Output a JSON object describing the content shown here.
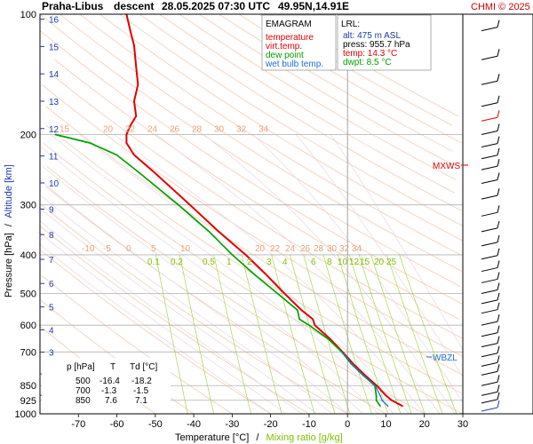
{
  "header": {
    "station": "Praha-Libus",
    "mode": "descent",
    "datetime": "28.05.2025 07:30 UTC",
    "location": "49.95N,14.91E",
    "copyright": "CHMI © 2025"
  },
  "legend": {
    "title": "EMAGRAM",
    "items": [
      {
        "label": "temperature",
        "color": "#e00000"
      },
      {
        "label": "virt.temp.",
        "color": "#e00000"
      },
      {
        "label": "dew point",
        "color": "#00a000"
      },
      {
        "label": "wet bulb temp.",
        "color": "#2070d0"
      }
    ]
  },
  "lrl": {
    "title": "LRL:",
    "rows": [
      {
        "text": "alt: 475 m ASL",
        "color": "#1a3aa8"
      },
      {
        "text": "press: 955.7 hPa",
        "color": "#000000"
      },
      {
        "text": "temp: 14.3 °C",
        "color": "#e00000"
      },
      {
        "text": "dwpt: 8.5 °C",
        "color": "#00a000"
      }
    ]
  },
  "axes": {
    "y_label_pressure": "Pressure [hPa]",
    "y_label_sep": "/",
    "y_label_altitude": "Altitude [km]",
    "x_label_temp": "Temperature [°C]",
    "x_label_sep": "/",
    "x_label_mixing": "Mixing ratio [g/kg]",
    "pressure_ticks": [
      "100",
      "200",
      "300",
      "400",
      "500",
      "600",
      "700",
      "850",
      "925",
      "1000"
    ],
    "temp_ticks": [
      "-70",
      "-60",
      "-50",
      "-40",
      "-30",
      "-20",
      "-10",
      "0",
      "10",
      "20",
      "30"
    ],
    "altitude_ticks": [
      "1",
      "2",
      "3",
      "4",
      "5",
      "6",
      "7",
      "8",
      "9",
      "10",
      "11",
      "12",
      "13",
      "14",
      "15",
      "16"
    ]
  },
  "annotations": {
    "mxws": "MXWS",
    "wbzl": "WBZL"
  },
  "dry_adiabat_labels_200": [
    "15",
    "20",
    "22",
    "24",
    "26",
    "28",
    "30",
    "32",
    "34"
  ],
  "dry_adiabat_labels_400": [
    "-10",
    "-5",
    "0",
    "5",
    "10",
    "20",
    "22",
    "24",
    "26",
    "28",
    "30",
    "32",
    "34"
  ],
  "mixing_ratio_labels": [
    "0.1",
    "0.2",
    "0.5",
    "1",
    "2",
    "3",
    "4",
    "6",
    "8",
    "10",
    "12",
    "15",
    "20",
    "25"
  ],
  "table": {
    "headers": [
      "p [hPa]",
      "T",
      "Td [°C]"
    ],
    "rows": [
      [
        "500",
        "-16.4",
        "-18.2"
      ],
      [
        "700",
        "-1.3",
        "-1.5"
      ],
      [
        "850",
        "7.6",
        "7.1"
      ]
    ]
  },
  "chart_data": {
    "type": "line",
    "title": "Praha-Libus descent 28.05.2025 07:30 UTC 49.95N,14.91E",
    "xlabel": "Temperature [°C] / Mixing ratio [g/kg]",
    "ylabel": "Pressure [hPa] / Altitude [km]",
    "xlim": [
      -80,
      30
    ],
    "ylim": [
      1000,
      100
    ],
    "y_scale": "log",
    "grid": true,
    "series": [
      {
        "name": "temperature",
        "color": "#e00000",
        "p": [
          956,
          925,
          900,
          850,
          800,
          750,
          700,
          650,
          600,
          580,
          550,
          500,
          450,
          400,
          350,
          300,
          250,
          225,
          210,
          200,
          190,
          180,
          165,
          150,
          135,
          120,
          110,
          100
        ],
        "t": [
          14.3,
          11.5,
          10.0,
          7.6,
          4.5,
          1.5,
          -1.3,
          -4.5,
          -8.5,
          -9.0,
          -12.0,
          -16.4,
          -21.0,
          -26.5,
          -33.5,
          -41.0,
          -50.0,
          -55.5,
          -57.5,
          -57.5,
          -56.5,
          -55.0,
          -55.5,
          -54.5,
          -55.0,
          -55.5,
          -56.5,
          -57.5
        ]
      },
      {
        "name": "dew point",
        "color": "#00a000",
        "p": [
          956,
          925,
          900,
          850,
          800,
          750,
          700,
          650,
          600,
          580,
          550,
          500,
          450,
          400,
          350,
          300,
          250,
          225,
          210,
          200
        ],
        "t": [
          8.5,
          7.5,
          7.5,
          7.1,
          4.0,
          1.0,
          -1.5,
          -5.0,
          -10.0,
          -12.5,
          -13.0,
          -18.2,
          -24.0,
          -30.0,
          -36.0,
          -44.0,
          -54.0,
          -60.0,
          -67.0,
          -76.0
        ]
      },
      {
        "name": "wet bulb temp.",
        "color": "#2070d0",
        "p": [
          956,
          925,
          900,
          850,
          800,
          750,
          700
        ],
        "t": [
          10.5,
          9.0,
          8.5,
          7.2,
          4.1,
          1.1,
          -1.4
        ]
      }
    ]
  }
}
